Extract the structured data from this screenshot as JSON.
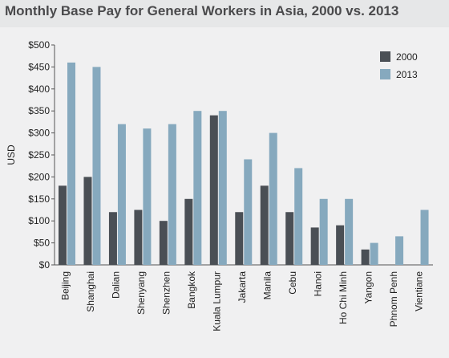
{
  "chart_data": {
    "type": "bar",
    "title": "Monthly Base Pay for General Workers in Asia, 2000 vs. 2013",
    "ylabel": "USD",
    "xlabel": "",
    "ylim": [
      0,
      500
    ],
    "yticks": [
      "$0",
      "$50",
      "$100",
      "$150",
      "$200",
      "$250",
      "$300",
      "$350",
      "$400",
      "$450",
      "$500"
    ],
    "legend_position": "top-right",
    "categories": [
      "Beijing",
      "Shanghai",
      "Dalian",
      "Shenyang",
      "Shenzhen",
      "Bangkok",
      "Kuala Lumpur",
      "Jakarta",
      "Manila",
      "Cebu",
      "Hanoi",
      "Ho Chi Minh",
      "Yangon",
      "Phnom Penh",
      "Vientiane"
    ],
    "series": [
      {
        "name": "2000",
        "color": "#4a4f55",
        "values": [
          180,
          200,
          120,
          125,
          100,
          150,
          340,
          120,
          180,
          120,
          85,
          90,
          35,
          null,
          null
        ]
      },
      {
        "name": "2013",
        "color": "#86a9be",
        "values": [
          460,
          450,
          320,
          310,
          320,
          350,
          350,
          240,
          300,
          220,
          150,
          150,
          50,
          65,
          125
        ]
      }
    ]
  }
}
